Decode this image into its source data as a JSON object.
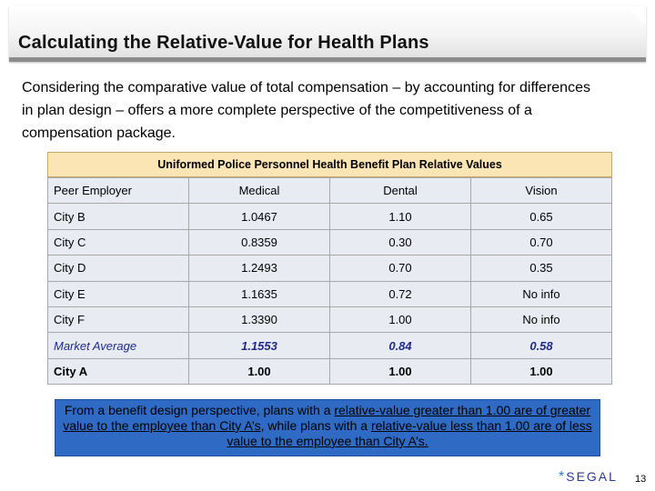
{
  "title": "Calculating the Relative-Value for Health Plans",
  "intro": "Considering the comparative value of total compensation – by accounting for differences in plan design – offers a more complete perspective of the competitiveness of a compensation package.",
  "table": {
    "caption": "Uniformed Police Personnel Health Benefit Plan Relative Values",
    "headers": [
      "Peer Employer",
      "Medical",
      "Dental",
      "Vision"
    ],
    "rows": [
      [
        "City B",
        "1.0467",
        "1.10",
        "0.65"
      ],
      [
        "City C",
        "0.8359",
        "0.30",
        "0.70"
      ],
      [
        "City D",
        "1.2493",
        "0.70",
        "0.35"
      ],
      [
        "City E",
        "1.1635",
        "0.72",
        "No info"
      ],
      [
        "City F",
        "1.3390",
        "1.00",
        "No info"
      ]
    ],
    "average": [
      "Market Average",
      "1.1553",
      "0.84",
      "0.58"
    ],
    "baseline": [
      "City A",
      "1.00",
      "1.00",
      "1.00"
    ]
  },
  "note": {
    "part1": "From a benefit design perspective, plans with a ",
    "part2": "relative-value greater than 1.00 are of greater value to the employee than City A’s",
    "part3": ", while plans with a ",
    "part4": "relative-value less than 1.00 are of less value to the employee than City A’s."
  },
  "footer": {
    "logo_star": "*",
    "logo_text": "SEGAL",
    "page_number": "13"
  },
  "colors": {
    "caption_bg": "#fbe5b4",
    "table_bg": "#e8ecf2",
    "note_bg": "#2f6bc4",
    "average_text": "#1f2a8a",
    "logo": "#2b3a8c"
  }
}
